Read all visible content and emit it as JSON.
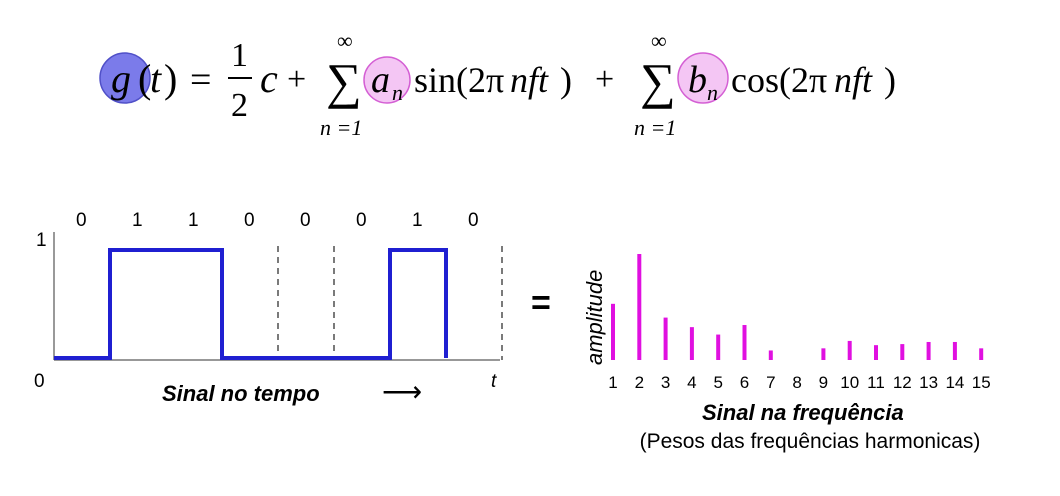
{
  "formula": {
    "g": "g",
    "t_open": "(",
    "t_var": "t",
    "t_close": ")",
    "equals": "=",
    "half_num": "1",
    "half_den": "2",
    "c": "c",
    "plus1": "+",
    "sum_symbol": "∑",
    "sum_upper": "∞",
    "sum_lower": "n =1",
    "a_n_base": "a",
    "a_n_sub": "n",
    "sin_term": "sin(2π",
    "sin_vars": "nft",
    "sin_close": ")",
    "plus2": "+",
    "b_n_base": "b",
    "b_n_sub": "n",
    "cos_term": "cos(2π",
    "cos_vars": "nft",
    "cos_close": ")"
  },
  "time_signal": {
    "bits": [
      "0",
      "1",
      "1",
      "0",
      "0",
      "0",
      "1",
      "0"
    ],
    "levels": [
      0,
      1,
      1,
      0,
      0,
      0,
      1,
      0
    ],
    "y_axis_top_label": "1",
    "origin_label": "0",
    "t_label": "t",
    "caption": "Sinal no tempo",
    "arrow": "⟶",
    "signal_color": "#1f1fd1"
  },
  "equals_sign": "=",
  "chart_data": {
    "type": "bar",
    "categories": [
      "1",
      "2",
      "3",
      "4",
      "5",
      "6",
      "7",
      "8",
      "9",
      "10",
      "11",
      "12",
      "13",
      "14",
      "15"
    ],
    "values": [
      0.53,
      1.0,
      0.4,
      0.31,
      0.24,
      0.33,
      0.09,
      0.0,
      0.11,
      0.18,
      0.14,
      0.15,
      0.17,
      0.17,
      0.11
    ],
    "ylabel": "amplitude",
    "xlabel": "Sinal na frequência",
    "bar_color": "#e010e0"
  },
  "freq_subtitle": "(Pesos das frequências harmonicas)",
  "colors": {
    "g_highlight": "#7b7bea",
    "coef_highlight": "#f4c6f4",
    "coef_border": "#d45fd4"
  }
}
